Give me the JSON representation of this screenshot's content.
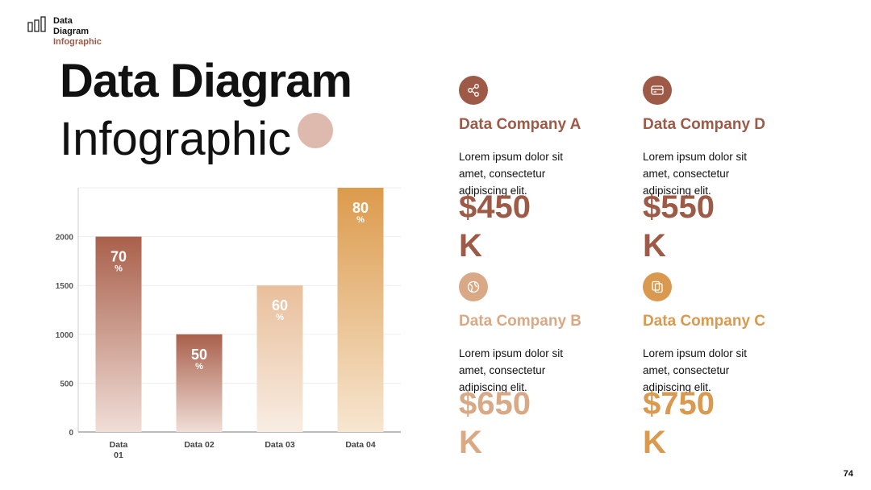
{
  "logo": {
    "line1": "Data",
    "line2": "Diagram",
    "line3": "Infographic",
    "icon": "bar-chart-icon"
  },
  "title": {
    "bold": "Data Diagram",
    "light": "Infographic"
  },
  "chart_data": {
    "type": "bar",
    "categories": [
      "Data 01",
      "Data 02",
      "Data 03",
      "Data 04"
    ],
    "values": [
      2000,
      1000,
      1500,
      2500
    ],
    "labels": [
      "70%",
      "50%",
      "60%",
      "80%"
    ],
    "yticks": [
      0,
      500,
      1000,
      1500,
      2000
    ],
    "ylim": [
      0,
      2500
    ],
    "grid": true,
    "colors": [
      [
        "#a9604b",
        "#f0ded7"
      ],
      [
        "#a9604b",
        "#f0ded7"
      ],
      [
        "#e9bf9b",
        "#f8ede3"
      ],
      [
        "#dc9b4c",
        "#f7e6d1"
      ]
    ]
  },
  "companies": [
    {
      "name": "Data Company A",
      "desc": "Lorem ipsum dolor sit amet, consectetur adipiscing elit.",
      "value": "$450 K",
      "color": "#9d5a46",
      "icon": "share-icon"
    },
    {
      "name": "Data Company D",
      "desc": "Lorem ipsum dolor sit amet, consectetur adipiscing elit.",
      "value": "$550 K",
      "color": "#9d5a46",
      "icon": "credit-card-icon"
    },
    {
      "name": "Data Company B",
      "desc": "Lorem ipsum dolor sit amet, consectetur adipiscing elit.",
      "value": "$650 K",
      "color": "#d9a986",
      "icon": "globe-icon"
    },
    {
      "name": "Data Company C",
      "desc": "Lorem ipsum dolor sit amet, consectetur adipiscing elit.",
      "value": "$750 K",
      "color": "#d9994e",
      "icon": "copy-icon"
    }
  ],
  "page_number": "74"
}
